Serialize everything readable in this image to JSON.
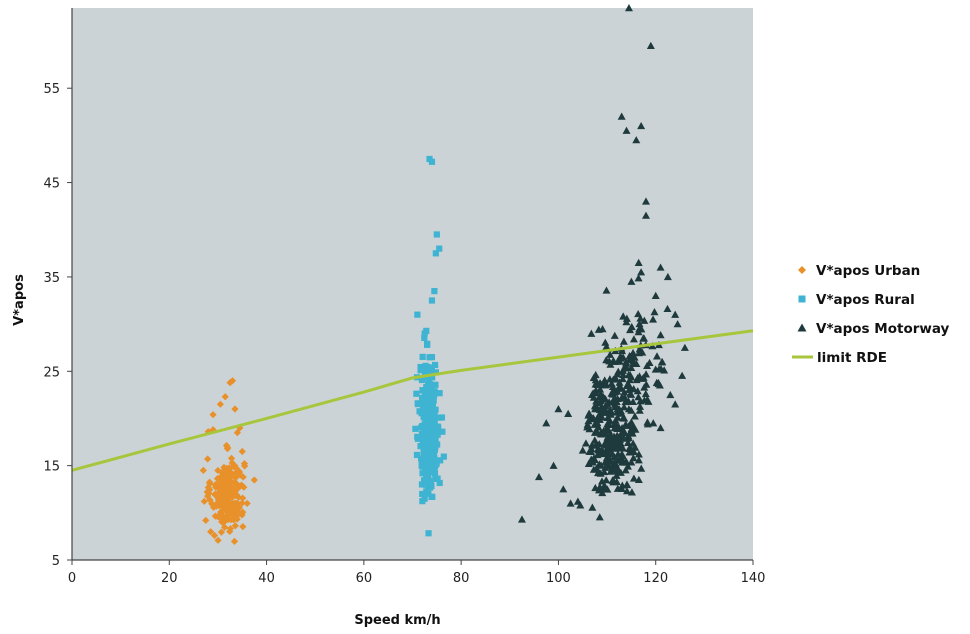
{
  "chart_data": {
    "type": "scatter",
    "title": "",
    "xlabel": "Speed km/h",
    "ylabel": "V*apos",
    "xlim": [
      0,
      140
    ],
    "ylim": [
      5,
      63.5
    ],
    "xticks": [
      0,
      20,
      40,
      60,
      80,
      100,
      120,
      140
    ],
    "yticks": [
      5,
      15,
      25,
      35,
      45,
      55
    ],
    "grid": false,
    "legend_position": "right",
    "plot_background": "#ccd3d6",
    "series": [
      {
        "name": "V*apos Urban",
        "marker": "diamond",
        "color": "#e8912a",
        "clusters": [
          {
            "x_mean": 32,
            "x_sd": 1.7,
            "y_mean": 12.0,
            "y_sd": 1.9,
            "n": 240
          }
        ],
        "points": [
          [
            28.5,
            8.0
          ],
          [
            29.3,
            7.6
          ],
          [
            27.5,
            9.2
          ],
          [
            28.0,
            18.6
          ],
          [
            29.0,
            18.8
          ],
          [
            27.0,
            14.5
          ],
          [
            29.0,
            20.4
          ],
          [
            30.5,
            21.5
          ],
          [
            31.5,
            22.3
          ],
          [
            32.5,
            23.8
          ],
          [
            33.0,
            24.0
          ],
          [
            34.0,
            18.5
          ],
          [
            34.5,
            19.0
          ],
          [
            33.5,
            21.0
          ],
          [
            36.0,
            11.0
          ],
          [
            35.0,
            16.5
          ]
        ]
      },
      {
        "name": "V*apos Rural",
        "marker": "square",
        "color": "#3fb4d2",
        "clusters": [
          {
            "x_mean": 73.5,
            "x_sd": 1.0,
            "y_mean": 19.0,
            "y_sd": 3.4,
            "n": 330
          }
        ],
        "points": [
          [
            73.5,
            47.5
          ],
          [
            74.0,
            47.2
          ],
          [
            75.0,
            39.5
          ],
          [
            75.5,
            38.0
          ],
          [
            74.8,
            37.5
          ],
          [
            74.5,
            33.5
          ],
          [
            74.0,
            32.5
          ],
          [
            71.0,
            31.0
          ],
          [
            72.5,
            29.0
          ],
          [
            73.0,
            27.8
          ],
          [
            72.0,
            12.0
          ],
          [
            72.5,
            11.5
          ],
          [
            74.0,
            26.5
          ]
        ]
      },
      {
        "name": "V*apos Motorway",
        "marker": "triangle",
        "color": "#1e3a3c",
        "clusters": [
          {
            "x_mean": 111,
            "x_sd": 2.6,
            "y_mean": 18.5,
            "y_sd": 3.2,
            "n": 280
          },
          {
            "x_mean": 115,
            "x_sd": 4.0,
            "y_mean": 25.0,
            "y_sd": 3.5,
            "n": 130
          }
        ],
        "points": [
          [
            114.5,
            63.5
          ],
          [
            119.0,
            59.5
          ],
          [
            113.0,
            52.0
          ],
          [
            117.0,
            51.0
          ],
          [
            114.0,
            50.5
          ],
          [
            116.0,
            49.5
          ],
          [
            118.0,
            43.0
          ],
          [
            118.0,
            41.5
          ],
          [
            116.5,
            36.5
          ],
          [
            117.0,
            35.5
          ],
          [
            115.0,
            34.5
          ],
          [
            121.0,
            36.0
          ],
          [
            122.5,
            35.0
          ],
          [
            124.0,
            31.0
          ],
          [
            124.5,
            30.0
          ],
          [
            126.0,
            27.5
          ],
          [
            120.0,
            33.0
          ],
          [
            92.5,
            9.3
          ],
          [
            96.0,
            13.8
          ],
          [
            97.5,
            19.5
          ],
          [
            99.0,
            15.0
          ],
          [
            101.0,
            12.5
          ],
          [
            102.5,
            11.0
          ],
          [
            104.0,
            11.2
          ],
          [
            104.5,
            10.8
          ],
          [
            100.0,
            21.0
          ],
          [
            102.0,
            20.5
          ],
          [
            123.0,
            22.5
          ],
          [
            124.0,
            21.5
          ],
          [
            121.0,
            19.0
          ],
          [
            119.5,
            19.5
          ]
        ]
      },
      {
        "name": "limit RDE",
        "type": "line",
        "color": "#a8c63c",
        "x": [
          0,
          20,
          40,
          60,
          70,
          80,
          100,
          120,
          140
        ],
        "y": [
          14.5,
          17.3,
          20.0,
          22.8,
          24.3,
          25.1,
          26.5,
          27.9,
          29.3
        ]
      }
    ]
  }
}
